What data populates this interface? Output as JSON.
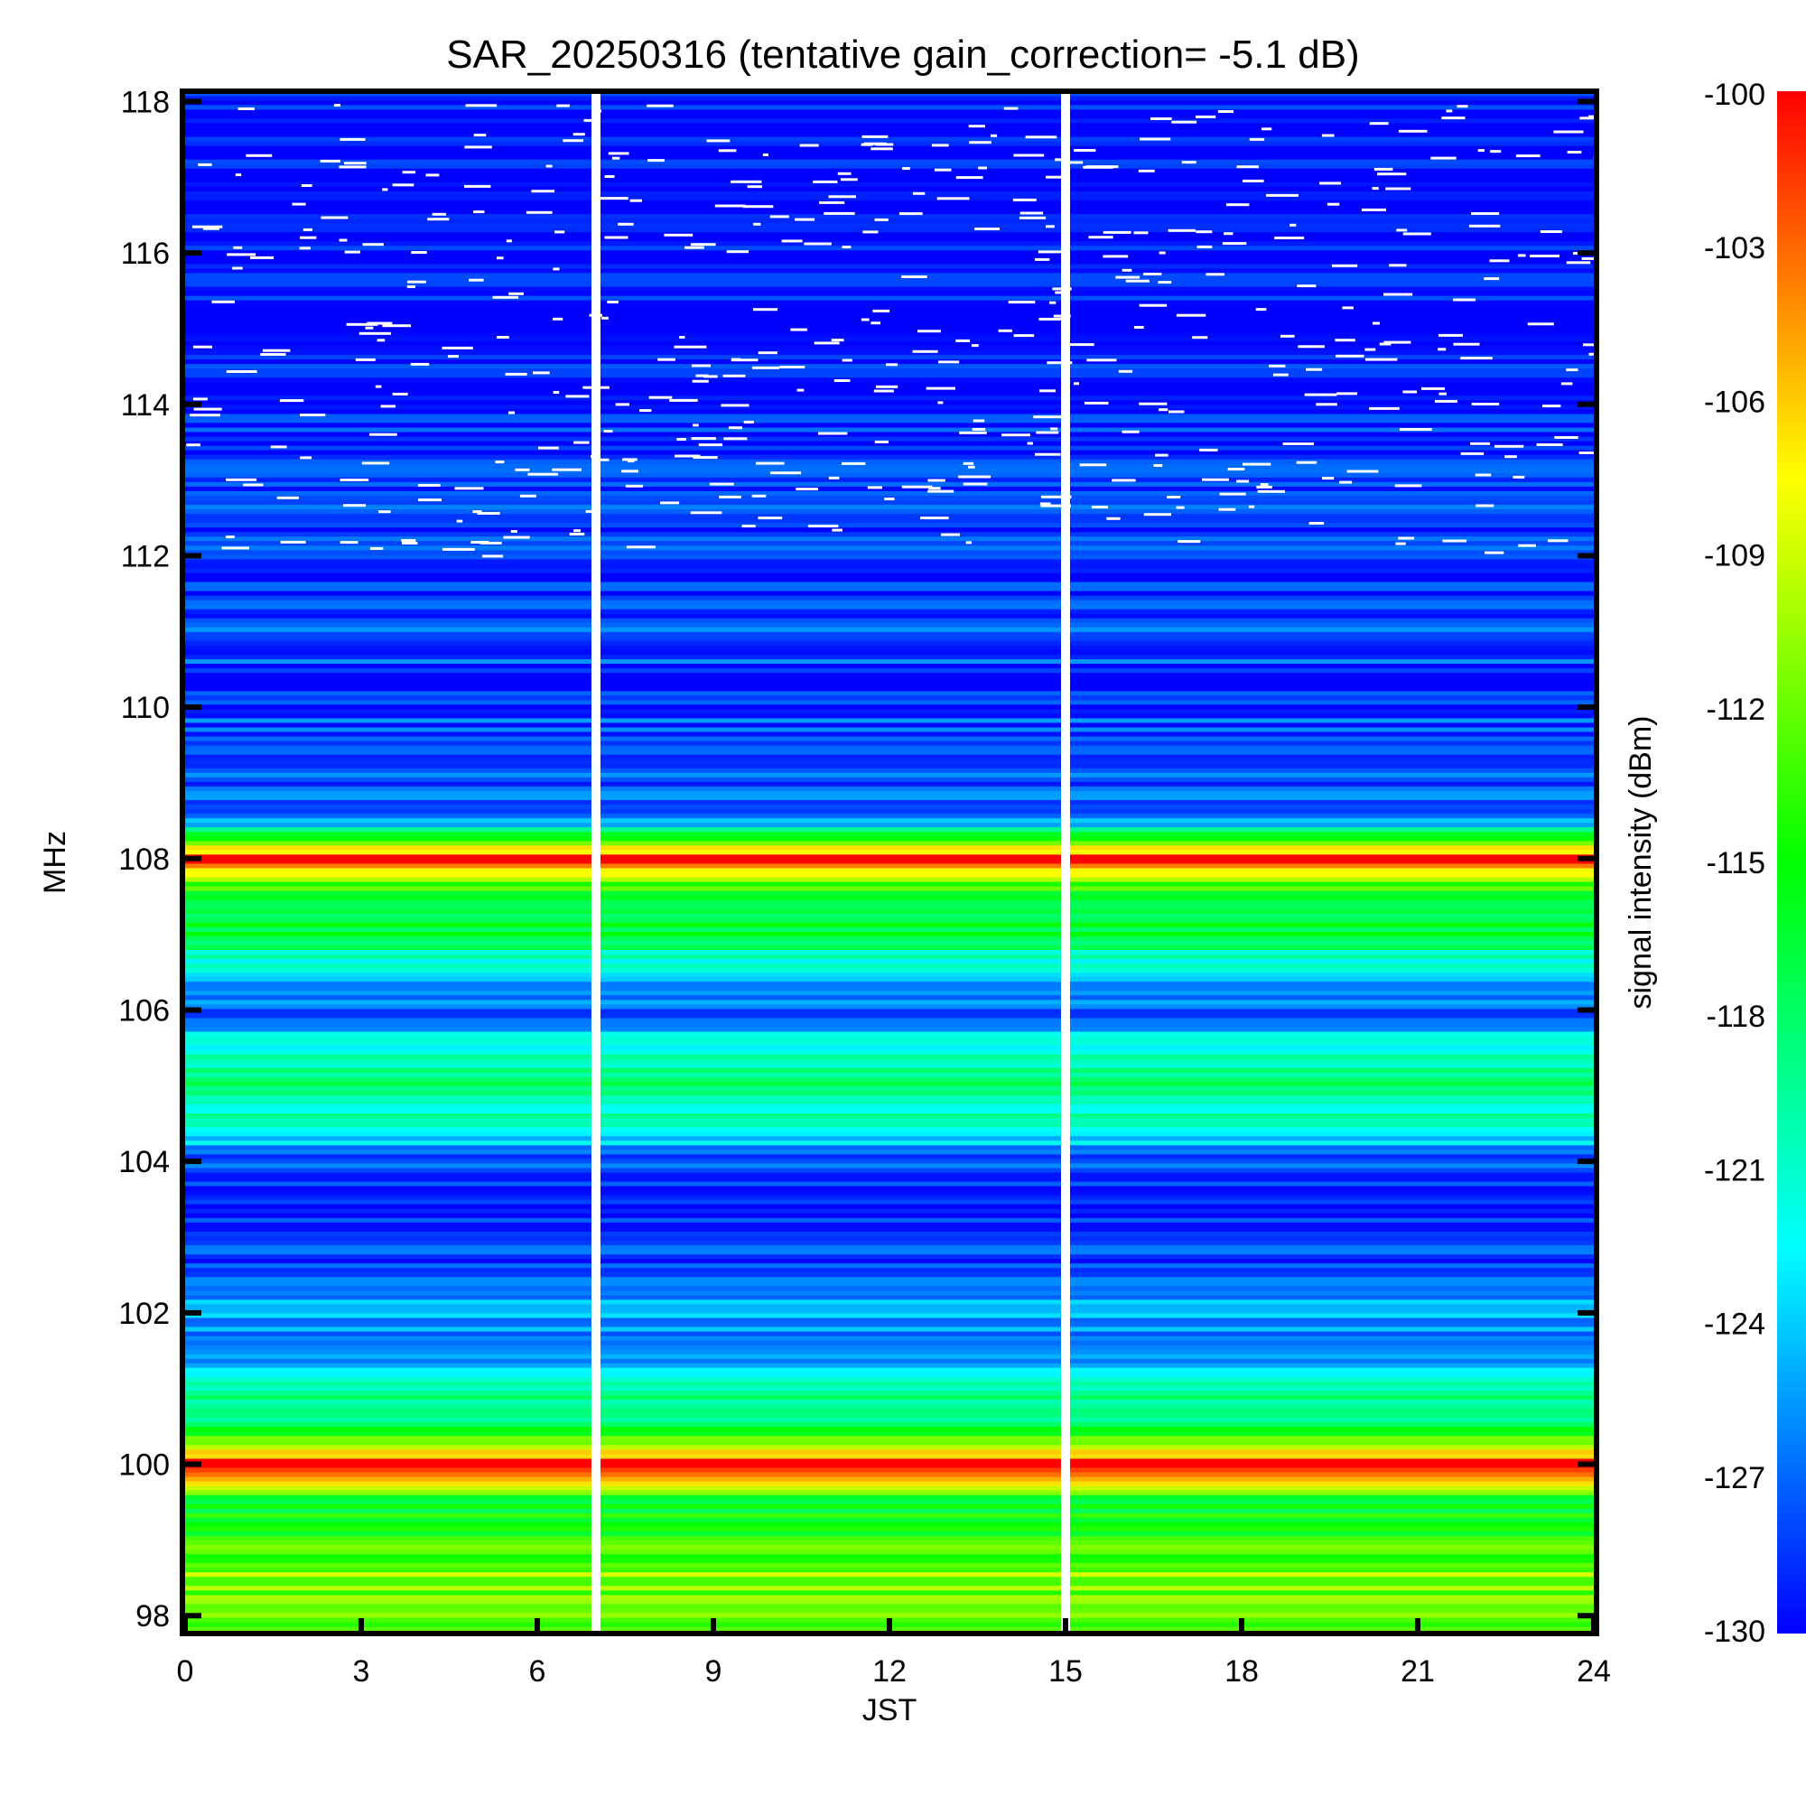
{
  "chart_data": {
    "type": "heatmap",
    "title": "SAR_20250316 (tentative gain_correction= -5.1 dB)",
    "xlabel": "JST",
    "ylabel": "MHz",
    "colorbar_label": "signal intensity (dBm)",
    "xlim": [
      0,
      24
    ],
    "ylim": [
      97.8,
      118.1
    ],
    "x_ticks": [
      0,
      3,
      6,
      9,
      12,
      15,
      18,
      21,
      24
    ],
    "y_ticks": [
      98,
      100,
      102,
      104,
      106,
      108,
      110,
      112,
      114,
      116,
      118
    ],
    "colorbar_range": [
      -130,
      -100
    ],
    "colorbar_ticks": [
      -100,
      -103,
      -106,
      -109,
      -112,
      -115,
      -118,
      -121,
      -124,
      -127,
      -130
    ],
    "colormap": [
      "#0000ff",
      "#00ffff",
      "#00ff00",
      "#ffff00",
      "#ff0000"
    ],
    "data_gaps_jst": [
      7.0,
      15.0
    ],
    "strong_signal_freqs_mhz": [
      100.0,
      108.0
    ],
    "frequency_profile_dbm": [
      {
        "mhz": 98.0,
        "dbm": -113
      },
      {
        "mhz": 98.6,
        "dbm": -111
      },
      {
        "mhz": 99.0,
        "dbm": -114
      },
      {
        "mhz": 99.5,
        "dbm": -116
      },
      {
        "mhz": 100.0,
        "dbm": -101
      },
      {
        "mhz": 100.5,
        "dbm": -118
      },
      {
        "mhz": 101.0,
        "dbm": -120
      },
      {
        "mhz": 101.5,
        "dbm": -126
      },
      {
        "mhz": 102.0,
        "dbm": -125
      },
      {
        "mhz": 102.5,
        "dbm": -127
      },
      {
        "mhz": 103.0,
        "dbm": -128
      },
      {
        "mhz": 103.5,
        "dbm": -130
      },
      {
        "mhz": 104.0,
        "dbm": -127
      },
      {
        "mhz": 104.5,
        "dbm": -122
      },
      {
        "mhz": 105.0,
        "dbm": -119
      },
      {
        "mhz": 105.5,
        "dbm": -122
      },
      {
        "mhz": 106.0,
        "dbm": -127
      },
      {
        "mhz": 106.5,
        "dbm": -124
      },
      {
        "mhz": 107.0,
        "dbm": -116
      },
      {
        "mhz": 107.5,
        "dbm": -118
      },
      {
        "mhz": 108.0,
        "dbm": -101
      },
      {
        "mhz": 108.5,
        "dbm": -126
      },
      {
        "mhz": 109.0,
        "dbm": -127
      },
      {
        "mhz": 110.0,
        "dbm": -128
      },
      {
        "mhz": 111.0,
        "dbm": -128
      },
      {
        "mhz": 112.0,
        "dbm": -128
      },
      {
        "mhz": 113.0,
        "dbm": -129
      },
      {
        "mhz": 114.0,
        "dbm": -129
      },
      {
        "mhz": 115.0,
        "dbm": -130
      },
      {
        "mhz": 116.0,
        "dbm": -130
      },
      {
        "mhz": 117.0,
        "dbm": -130
      },
      {
        "mhz": 118.0,
        "dbm": -130
      }
    ]
  }
}
